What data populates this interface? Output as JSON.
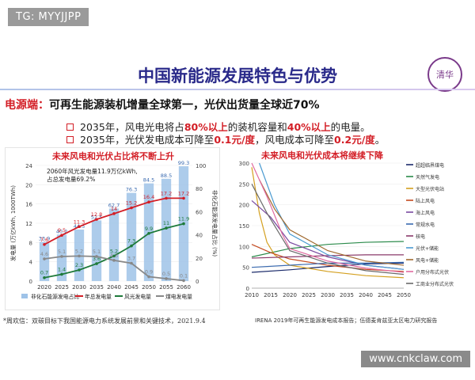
{
  "overlay": {
    "top_tag": "TG: MYYJJPP",
    "watermark": "www.cnkclaw.com"
  },
  "slide": {
    "title": "中国新能源发展特色与优势",
    "heading_red": "电源端：",
    "heading_rest": "可再生能源装机增量全球第一，光伏出货量全球近70%",
    "bullet1": {
      "a": "2035年，风电光电将占",
      "r1": "80%以上",
      "b": "的装机容量和",
      "r2": "40%以上",
      "c": "的电量。"
    },
    "bullet2": {
      "a": "2035年，光伏发电成本可降至",
      "r1": "0.1元/度",
      "b": "，风电成本可降至",
      "r2": "0.2元/度",
      "c": "。"
    },
    "left_source": "*周欢信：双碳目标下我国能源电力系统发展前景和关键技术，2021.9.4",
    "right_source": "IRENA 2019年可再生能源发电成本报告；伍德麦肯兹亚太区电力研究报告",
    "logo_text": "清华"
  },
  "chart_data": [
    {
      "type": "bar",
      "title": "未来风电和光伏占比将不断上升",
      "annotation": "2060年风光发电量11.9万亿kWh,\n占总发电量69.2%",
      "ylabel_left": "发电量 (万亿kWh, 1000TWh)",
      "ylabel_right": "非化石能源发电量占比 (%)",
      "y_left_ticks": [
        0,
        4,
        8,
        12,
        16,
        20,
        24
      ],
      "y_right_ticks": [
        0,
        20,
        40,
        60,
        80,
        100
      ],
      "categories": [
        "2020",
        "2025",
        "2030",
        "2035",
        "2040",
        "2045",
        "2050",
        "2055",
        "2060"
      ],
      "series": [
        {
          "name": "非化石能源发电占比",
          "kind": "bar",
          "axis": "right",
          "color": "#9fc3e8",
          "values": [
            33.9,
            40.2,
            44.5,
            52.5,
            62.7,
            76.3,
            84.5,
            88.5,
            99.3
          ]
        },
        {
          "name": "年总发电量",
          "kind": "line",
          "axis": "left",
          "color": "#d31e26",
          "values": [
            7.6,
            9.5,
            11.3,
            12.8,
            14,
            15.2,
            16.4,
            17.2,
            17.2
          ]
        },
        {
          "name": "风光发电量",
          "kind": "line",
          "axis": "left",
          "color": "#1e7a3a",
          "values": [
            0.7,
            1.4,
            2.3,
            3.6,
            5.2,
            7.3,
            9.9,
            11,
            11.9
          ]
        },
        {
          "name": "煤电发电量",
          "kind": "line",
          "axis": "left",
          "color": "#888888",
          "values": [
            4.6,
            5.1,
            5.2,
            5.1,
            4.3,
            3.7,
            0.9,
            0.5,
            0.1
          ]
        }
      ],
      "legend": [
        "非化石能源发电占比",
        "年总发电量",
        "风光发电量",
        "煤电发电量"
      ]
    },
    {
      "type": "line",
      "title": "未来风电和光伏成本将继续下降",
      "x_ticks": [
        "2010",
        "2015",
        "2020",
        "2025",
        "2030",
        "2035",
        "2040",
        "2045",
        "2050"
      ],
      "y_ticks": [
        0,
        50,
        100,
        150,
        200,
        250,
        300
      ],
      "legend": [
        "超超临界煤电",
        "天然气发电",
        "大型光伏电站",
        "陆上风电",
        "海上风电",
        "常规水电",
        "核电",
        "光伏+储能",
        "风电+储能",
        "户用分布式光伏",
        "工商业分布式光伏"
      ],
      "series": [
        {
          "name": "超超临界煤电",
          "color": "#1a2a6a",
          "x": [
            2010,
            2020,
            2030,
            2040,
            2050
          ],
          "values": [
            38,
            44,
            52,
            58,
            60
          ]
        },
        {
          "name": "天然气发电",
          "color": "#2a8a4a",
          "x": [
            2010,
            2020,
            2030,
            2040,
            2050
          ],
          "values": [
            75,
            95,
            105,
            110,
            112
          ]
        },
        {
          "name": "大型光伏电站",
          "color": "#d4a020",
          "x": [
            2010,
            2012,
            2014,
            2016,
            2020,
            2030,
            2040,
            2050
          ],
          "values": [
            290,
            180,
            110,
            80,
            55,
            40,
            30,
            25
          ]
        },
        {
          "name": "陆上风电",
          "color": "#c44a20",
          "x": [
            2010,
            2015,
            2020,
            2030,
            2040,
            2050
          ],
          "values": [
            105,
            85,
            70,
            55,
            45,
            40
          ]
        },
        {
          "name": "海上风电",
          "color": "#7a4aa0",
          "x": [
            2010,
            2015,
            2020,
            2030,
            2040,
            2050
          ],
          "values": [
            210,
            170,
            110,
            75,
            55,
            45
          ]
        },
        {
          "name": "常规水电",
          "color": "#3a6ab0",
          "x": [
            2010,
            2020,
            2030,
            2040,
            2050
          ],
          "values": [
            50,
            55,
            60,
            60,
            62
          ]
        },
        {
          "name": "核电",
          "color": "#8a3a6a",
          "x": [
            2010,
            2020,
            2030,
            2040,
            2050
          ],
          "values": [
            72,
            75,
            78,
            80,
            80
          ]
        },
        {
          "name": "光伏+储能",
          "color": "#4a9ad0",
          "x": [
            2012,
            2016,
            2020,
            2030,
            2040,
            2050
          ],
          "values": [
            300,
            200,
            130,
            80,
            55,
            45
          ]
        },
        {
          "name": "风电+储能",
          "color": "#a06a30",
          "x": [
            2012,
            2016,
            2020,
            2030,
            2040,
            2050
          ],
          "values": [
            260,
            190,
            140,
            90,
            65,
            55
          ]
        },
        {
          "name": "户用分布式光伏",
          "color": "#e06aa0",
          "x": [
            2010,
            2014,
            2018,
            2020,
            2030,
            2040,
            2050
          ],
          "values": [
            300,
            220,
            130,
            95,
            65,
            48,
            38
          ]
        },
        {
          "name": "工商业分布式光伏",
          "color": "#6a6a6a",
          "x": [
            2010,
            2014,
            2018,
            2020,
            2030,
            2040,
            2050
          ],
          "values": [
            250,
            180,
            120,
            90,
            60,
            42,
            33
          ]
        }
      ]
    }
  ]
}
